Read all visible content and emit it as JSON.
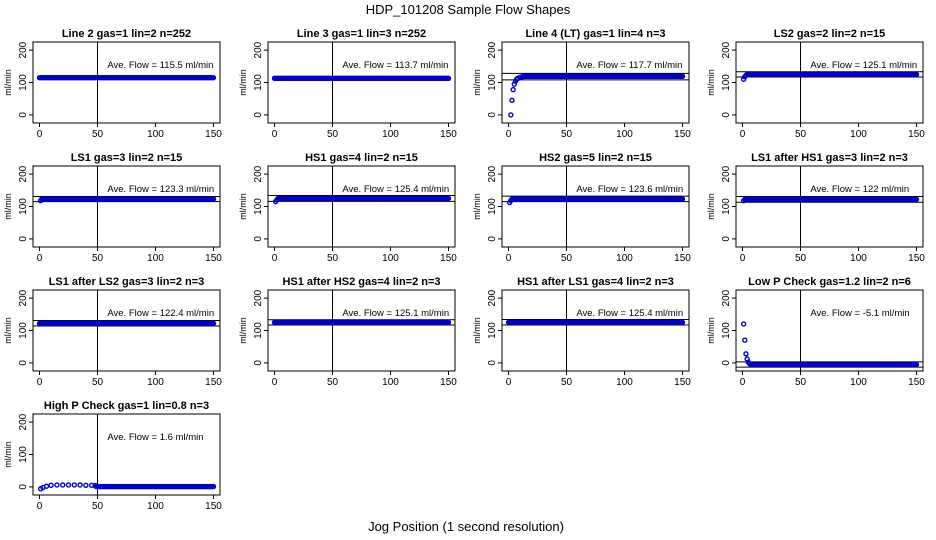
{
  "figure": {
    "title": "HDP_101208  Sample Flow Shapes",
    "xlabel": "Jog Position (1 second resolution)"
  },
  "chart_data": [
    {
      "type": "scatter",
      "title": "Line 2 gas=1 lin=2 n=252",
      "ylabel": "ml/min",
      "annotation": "Ave. Flow =  115.5  ml/min",
      "xlim": [
        0,
        150
      ],
      "ylim": [
        -25,
        225
      ],
      "xticks": [
        "0",
        "50",
        "100",
        "150"
      ],
      "yticks": [
        "0",
        "100",
        "200"
      ],
      "ref_lines": {
        "vline": 50,
        "hlines": []
      },
      "series": [
        {
          "color": "#0000cc",
          "level": 115,
          "ramp": []
        }
      ]
    },
    {
      "type": "scatter",
      "title": "Line 3 gas=1 lin=3 n=252",
      "ylabel": "ml/min",
      "annotation": "Ave. Flow =  113.7  ml/min",
      "xlim": [
        0,
        150
      ],
      "ylim": [
        -25,
        225
      ],
      "xticks": [
        "0",
        "50",
        "100",
        "150"
      ],
      "yticks": [
        "0",
        "100",
        "200"
      ],
      "ref_lines": {
        "vline": 50,
        "hlines": []
      },
      "series": [
        {
          "color": "#0000cc",
          "level": 113,
          "ramp": []
        }
      ]
    },
    {
      "type": "scatter",
      "title": "Line 4 (LT) gas=1 lin=4 n=3",
      "ylabel": "ml/min",
      "annotation": "Ave. Flow =  117.7  ml/min",
      "xlim": [
        0,
        150
      ],
      "ylim": [
        -25,
        225
      ],
      "xticks": [
        "0",
        "50",
        "100",
        "150"
      ],
      "yticks": [
        "0",
        "100",
        "200"
      ],
      "ref_lines": {
        "vline": 50,
        "hlines": [
          108,
          128
        ]
      },
      "series": [
        {
          "color": "#0000cc",
          "level": 119,
          "ramp": [
            [
              2,
              0
            ],
            [
              3,
              45
            ],
            [
              4,
              78
            ],
            [
              5,
              95
            ],
            [
              6,
              104
            ],
            [
              7,
              110
            ],
            [
              8,
              113
            ],
            [
              10,
              116
            ],
            [
              12,
              118
            ]
          ]
        }
      ]
    },
    {
      "type": "scatter",
      "title": "LS2 gas=2 lin=2 n=15",
      "ylabel": "ml/min",
      "annotation": "Ave. Flow =  125.1  ml/min",
      "xlim": [
        0,
        150
      ],
      "ylim": [
        -25,
        225
      ],
      "xticks": [
        "0",
        "50",
        "100",
        "150"
      ],
      "yticks": [
        "0",
        "100",
        "200"
      ],
      "ref_lines": {
        "vline": 50,
        "hlines": [
          117,
          133
        ]
      },
      "series": [
        {
          "color": "#0000cc",
          "level": 125,
          "ramp": [
            [
              1,
              110
            ],
            [
              2,
              118
            ],
            [
              3,
              122
            ]
          ]
        }
      ]
    },
    {
      "type": "scatter",
      "title": "LS1 gas=3 lin=2 n=15",
      "ylabel": "ml/min",
      "annotation": "Ave. Flow =  123.3  ml/min",
      "xlim": [
        0,
        150
      ],
      "ylim": [
        -25,
        225
      ],
      "xticks": [
        "0",
        "50",
        "100",
        "150"
      ],
      "yticks": [
        "0",
        "100",
        "200"
      ],
      "ref_lines": {
        "vline": 50,
        "hlines": [
          115,
          131
        ]
      },
      "series": [
        {
          "color": "#0000cc",
          "level": 123,
          "ramp": [
            [
              1,
              118
            ]
          ]
        }
      ]
    },
    {
      "type": "scatter",
      "title": "HS1 gas=4 lin=2 n=15",
      "ylabel": "ml/min",
      "annotation": "Ave. Flow =  125.4  ml/min",
      "xlim": [
        0,
        150
      ],
      "ylim": [
        -25,
        225
      ],
      "xticks": [
        "0",
        "50",
        "100",
        "150"
      ],
      "yticks": [
        "0",
        "100",
        "200"
      ],
      "ref_lines": {
        "vline": 50,
        "hlines": [
          116,
          134
        ]
      },
      "series": [
        {
          "color": "#0000cc",
          "level": 125,
          "ramp": [
            [
              1,
              115
            ],
            [
              2,
              120
            ]
          ]
        }
      ]
    },
    {
      "type": "scatter",
      "title": "HS2 gas=5 lin=2 n=15",
      "ylabel": "ml/min",
      "annotation": "Ave. Flow =  123.6  ml/min",
      "xlim": [
        0,
        150
      ],
      "ylim": [
        -25,
        225
      ],
      "xticks": [
        "0",
        "50",
        "100",
        "150"
      ],
      "yticks": [
        "0",
        "100",
        "200"
      ],
      "ref_lines": {
        "vline": 50,
        "hlines": [
          115,
          132
        ]
      },
      "series": [
        {
          "color": "#0000cc",
          "level": 123,
          "ramp": [
            [
              1,
              112
            ],
            [
              2,
              118
            ]
          ]
        }
      ]
    },
    {
      "type": "scatter",
      "title": "LS1 after HS1 gas=3 lin=2 n=3",
      "ylabel": "ml/min",
      "annotation": "Ave. Flow =  122  ml/min",
      "xlim": [
        0,
        150
      ],
      "ylim": [
        -25,
        225
      ],
      "xticks": [
        "0",
        "50",
        "100",
        "150"
      ],
      "yticks": [
        "0",
        "100",
        "200"
      ],
      "ref_lines": {
        "vline": 50,
        "hlines": [
          113,
          131
        ]
      },
      "series": [
        {
          "color": "#0000cc",
          "level": 122,
          "ramp": [
            [
              1,
              118
            ]
          ]
        }
      ]
    },
    {
      "type": "scatter",
      "title": "LS1 after LS2 gas=3 lin=2 n=3",
      "ylabel": "ml/min",
      "annotation": "Ave. Flow =  122.4  ml/min",
      "xlim": [
        0,
        150
      ],
      "ylim": [
        -25,
        225
      ],
      "xticks": [
        "0",
        "50",
        "100",
        "150"
      ],
      "yticks": [
        "0",
        "100",
        "200"
      ],
      "ref_lines": {
        "vline": 50,
        "hlines": [
          114,
          131
        ]
      },
      "series": [
        {
          "color": "#0000cc",
          "level": 122,
          "ramp": []
        }
      ]
    },
    {
      "type": "scatter",
      "title": "HS1 after HS2 gas=4 lin=2 n=3",
      "ylabel": "ml/min",
      "annotation": "Ave. Flow =  125.1  ml/min",
      "xlim": [
        0,
        150
      ],
      "ylim": [
        -25,
        225
      ],
      "xticks": [
        "0",
        "50",
        "100",
        "150"
      ],
      "yticks": [
        "0",
        "100",
        "200"
      ],
      "ref_lines": {
        "vline": 50,
        "hlines": [
          117,
          133
        ]
      },
      "series": [
        {
          "color": "#0000cc",
          "level": 125,
          "ramp": []
        }
      ]
    },
    {
      "type": "scatter",
      "title": "HS1 after LS1 gas=4 lin=2 n=3",
      "ylabel": "ml/min",
      "annotation": "Ave. Flow =  125.4  ml/min",
      "xlim": [
        0,
        150
      ],
      "ylim": [
        -25,
        225
      ],
      "xticks": [
        "0",
        "50",
        "100",
        "150"
      ],
      "yticks": [
        "0",
        "100",
        "200"
      ],
      "ref_lines": {
        "vline": 50,
        "hlines": [
          117,
          134
        ]
      },
      "series": [
        {
          "color": "#0000cc",
          "level": 125,
          "ramp": []
        }
      ]
    },
    {
      "type": "scatter",
      "title": "Low P Check gas=1.2 lin=2 n=6",
      "ylabel": "ml/min",
      "annotation": "Ave. Flow =  -5.1  ml/min",
      "xlim": [
        0,
        150
      ],
      "ylim": [
        -25,
        225
      ],
      "xticks": [
        "0",
        "50",
        "100",
        "150"
      ],
      "yticks": [
        "0",
        "100",
        "200"
      ],
      "ref_lines": {
        "vline": 50,
        "hlines": [
          -13,
          3
        ]
      },
      "series": [
        {
          "color": "#0000cc",
          "level": -5,
          "ramp": [
            [
              1,
              120
            ],
            [
              2,
              70
            ],
            [
              3,
              28
            ],
            [
              4,
              12
            ],
            [
              5,
              2
            ],
            [
              6,
              -2
            ]
          ]
        }
      ]
    },
    {
      "type": "scatter",
      "title": "High P Check gas=1 lin=0.8 n=3",
      "ylabel": "ml/min",
      "annotation": "Ave. Flow =  1.6  ml/min",
      "xlim": [
        0,
        150
      ],
      "ylim": [
        -25,
        225
      ],
      "xticks": [
        "0",
        "50",
        "100",
        "150"
      ],
      "yticks": [
        "0",
        "100",
        "200"
      ],
      "ref_lines": {
        "vline": 50,
        "hlines": []
      },
      "series": [
        {
          "color": "#0000cc",
          "level": 1,
          "ramp": [
            [
              1,
              -6
            ],
            [
              3,
              -2
            ],
            [
              6,
              2
            ],
            [
              10,
              5
            ],
            [
              15,
              6
            ],
            [
              20,
              6
            ],
            [
              25,
              6
            ],
            [
              30,
              6
            ],
            [
              35,
              6
            ],
            [
              40,
              5
            ],
            [
              45,
              5
            ],
            [
              48,
              4
            ]
          ]
        }
      ]
    }
  ]
}
